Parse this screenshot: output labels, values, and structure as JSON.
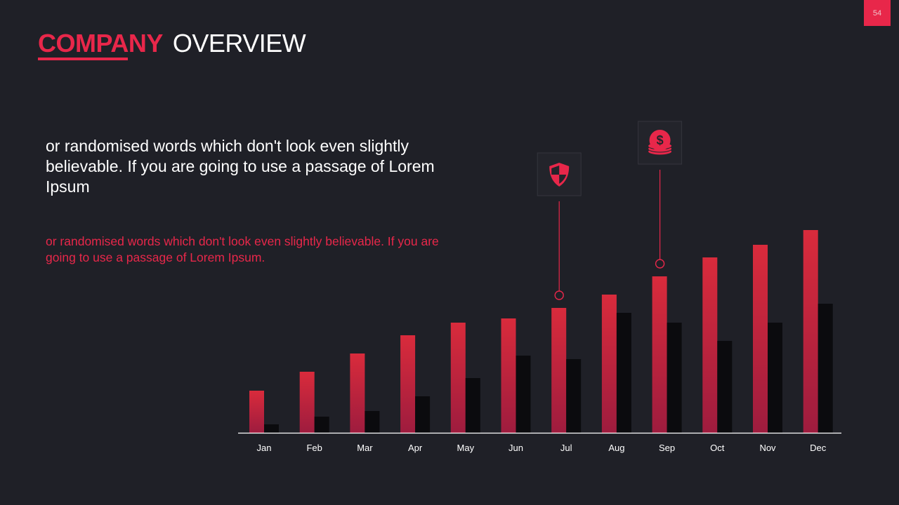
{
  "slide": {
    "number": "54"
  },
  "colors": {
    "accent": "#e8274a",
    "bar_primary": "#d92b3c",
    "bar_secondary": "#0b0b0e",
    "axis": "#ffffff",
    "tick_label": "#ffffff"
  },
  "header": {
    "title_bold": "COMPANY",
    "title_light": "OVERVIEW"
  },
  "body": {
    "lead": "or randomised words which don't look even slightly believable. If you are going to use a passage of Lorem Ipsum",
    "sub": "or randomised words which don't look even slightly believable. If you are going to use a passage of Lorem Ipsum."
  },
  "chart_data": {
    "type": "bar",
    "categories": [
      "Jan",
      "Feb",
      "Mar",
      "Apr",
      "May",
      "Jun",
      "Jul",
      "Aug",
      "Sep",
      "Oct",
      "Nov",
      "Dec"
    ],
    "series": [
      {
        "values": [
          60,
          87,
          113,
          139,
          157,
          163,
          178,
          197,
          223,
          250,
          268,
          289
        ]
      },
      {
        "values": [
          12,
          23,
          31,
          52,
          78,
          110,
          105,
          171,
          157,
          131,
          157,
          184
        ]
      }
    ],
    "ylim": [
      0,
      300
    ],
    "grid": false,
    "legend": "none",
    "annotations": [
      {
        "category": "Jul",
        "icon": "shield-icon"
      },
      {
        "category": "Sep",
        "icon": "dollar-coins-icon"
      }
    ]
  }
}
